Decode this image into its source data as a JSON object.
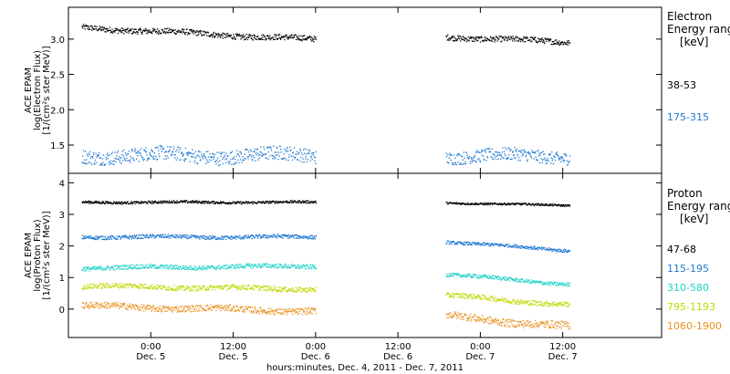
{
  "chart_data": [
    {
      "type": "scatter",
      "panel": "electron",
      "ylabel_lines": [
        "ACE EPAM",
        "log(Electron Flux)",
        "[1/(cm²s ster MeV)]"
      ],
      "yticks": [
        "1.5",
        "2.0",
        "2.5",
        "3.0"
      ],
      "ylim": [
        1.1,
        3.45
      ],
      "side_title_lines": [
        "Electron",
        "Energy ranges",
        "[keV]"
      ],
      "series": [
        {
          "name": "38-53",
          "color": "#000000",
          "segments": [
            {
              "t0": -0.42,
              "t1": 1.0,
              "v0": 3.17,
              "v1": 3.0,
              "noise": 0.04
            },
            {
              "t0": 1.79,
              "t1": 2.54,
              "v0": 3.04,
              "v1": 2.96,
              "noise": 0.04
            }
          ]
        },
        {
          "name": "175-315",
          "color": "#1e78d2",
          "segments": [
            {
              "t0": -0.42,
              "t1": 1.0,
              "v0": 1.36,
              "v1": 1.36,
              "noise": 0.1
            },
            {
              "t0": 1.79,
              "t1": 2.54,
              "v0": 1.35,
              "v1": 1.35,
              "noise": 0.09
            }
          ]
        }
      ]
    },
    {
      "type": "scatter",
      "panel": "proton",
      "ylabel_lines": [
        "ACE EPAM",
        "log(Proton Flux)",
        "[1/(cm²s ster MeV)]"
      ],
      "yticks": [
        "0",
        "1",
        "2",
        "3",
        "4"
      ],
      "ylim": [
        -0.9,
        4.3
      ],
      "side_title_lines": [
        "Proton",
        "Energy ranges",
        "[keV]"
      ],
      "series": [
        {
          "name": "47-68",
          "color": "#000000",
          "segments": [
            {
              "t0": -0.42,
              "t1": 1.0,
              "v0": 3.4,
              "v1": 3.4,
              "noise": 0.04
            },
            {
              "t0": 1.79,
              "t1": 2.54,
              "v0": 3.38,
              "v1": 3.3,
              "noise": 0.03
            }
          ]
        },
        {
          "name": "115-195",
          "color": "#1e78d2",
          "segments": [
            {
              "t0": -0.42,
              "t1": 1.0,
              "v0": 2.3,
              "v1": 2.3,
              "noise": 0.06
            },
            {
              "t0": 1.79,
              "t1": 2.54,
              "v0": 2.15,
              "v1": 1.87,
              "noise": 0.05
            }
          ]
        },
        {
          "name": "310-580",
          "color": "#20d2c8",
          "segments": [
            {
              "t0": -0.42,
              "t1": 1.0,
              "v0": 1.32,
              "v1": 1.38,
              "noise": 0.07
            },
            {
              "t0": 1.79,
              "t1": 2.54,
              "v0": 1.12,
              "v1": 0.8,
              "noise": 0.06
            }
          ]
        },
        {
          "name": "795-1193",
          "color": "#c0d800",
          "segments": [
            {
              "t0": -0.42,
              "t1": 1.0,
              "v0": 0.75,
              "v1": 0.65,
              "noise": 0.08
            },
            {
              "t0": 1.79,
              "t1": 2.54,
              "v0": 0.45,
              "v1": 0.15,
              "noise": 0.08
            }
          ]
        },
        {
          "name": "1060-1900",
          "color": "#e8901c",
          "segments": [
            {
              "t0": -0.42,
              "t1": 1.0,
              "v0": 0.12,
              "v1": -0.05,
              "noise": 0.1
            },
            {
              "t0": 1.79,
              "t1": 2.54,
              "v0": -0.2,
              "v1": -0.55,
              "noise": 0.12
            }
          ]
        }
      ]
    }
  ],
  "x_axis": {
    "xlim": [
      -0.5,
      3.1
    ],
    "tick_labels": [
      {
        "t": 0.0,
        "time": "0:00",
        "day": "Dec. 5"
      },
      {
        "t": 0.5,
        "time": "12:00",
        "day": "Dec. 5"
      },
      {
        "t": 1.0,
        "time": "0:00",
        "day": "Dec. 6"
      },
      {
        "t": 1.5,
        "time": "12:00",
        "day": "Dec. 6"
      },
      {
        "t": 2.0,
        "time": "0:00",
        "day": "Dec. 7"
      },
      {
        "t": 2.5,
        "time": "12:00",
        "day": "Dec. 7"
      }
    ],
    "xlabel": "hours:minutes, Dec.  4, 2011 - Dec.  7, 2011"
  }
}
